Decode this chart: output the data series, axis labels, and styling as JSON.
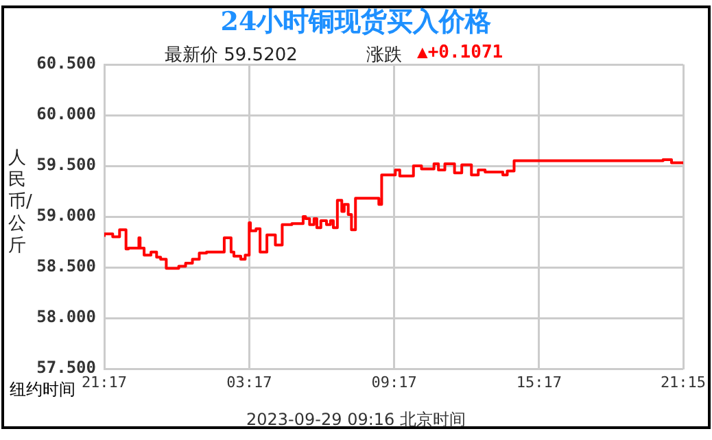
{
  "chart_data": {
    "type": "step",
    "title": "24小时铜现货买入价格",
    "subtitle": "最新价 59.5202",
    "xlabel": "纽约时间",
    "ylabel": "人民币/公斤",
    "annotations": [
      "涨跌",
      "▲+0.1071",
      "2023-09-29 09:16 北京时间"
    ],
    "x": [
      "2023-09-27T21:17",
      "2023-09-27T21:38",
      "2023-09-27T21:55",
      "2023-09-27T22:11",
      "2023-09-27T22:17",
      "2023-09-27T22:43",
      "2023-09-27T22:46",
      "2023-09-27T22:56",
      "2023-09-27T23:13",
      "2023-09-27T23:27",
      "2023-09-27T23:37",
      "2023-09-27T23:51",
      "2023-09-28T00:22",
      "2023-09-28T00:39",
      "2023-09-28T00:56",
      "2023-09-28T01:13",
      "2023-09-28T01:31",
      "2023-09-28T02:15",
      "2023-09-28T02:32",
      "2023-09-28T02:39",
      "2023-09-28T02:56",
      "2023-09-28T03:07",
      "2023-09-28T03:17",
      "2023-09-28T03:20",
      "2023-09-28T03:34",
      "2023-09-28T03:44",
      "2023-09-28T04:01",
      "2023-09-28T04:22",
      "2023-09-28T04:39",
      "2023-09-28T05:03",
      "2023-09-28T05:31",
      "2023-09-28T05:37",
      "2023-09-28T05:47",
      "2023-09-28T05:58",
      "2023-09-28T06:05",
      "2023-09-28T06:15",
      "2023-09-28T06:29",
      "2023-09-28T06:39",
      "2023-09-28T06:46",
      "2023-09-28T06:56",
      "2023-09-28T07:07",
      "2023-09-28T07:13",
      "2023-09-28T07:23",
      "2023-09-28T07:31",
      "2023-09-28T07:41",
      "2023-09-28T08:05",
      "2023-09-28T08:39",
      "2023-09-28T08:46",
      "2023-09-28T09:20",
      "2023-09-28T09:31",
      "2023-09-28T10:05",
      "2023-09-28T10:25",
      "2023-09-28T10:56",
      "2023-09-28T11:07",
      "2023-09-28T11:23",
      "2023-09-28T11:47",
      "2023-09-28T12:05",
      "2023-09-28T12:29",
      "2023-09-28T12:46",
      "2023-09-28T13:03",
      "2023-09-28T13:47",
      "2023-09-28T13:58",
      "2023-09-28T14:15",
      "2023-09-28T20:25",
      "2023-09-28T20:46",
      "2023-09-28T21:07",
      "2023-09-28T21:15"
    ],
    "series": [
      {
        "color": "#ff0000",
        "values": [
          58.8,
          58.83,
          58.8,
          58.87,
          58.68,
          58.69,
          58.79,
          58.69,
          58.62,
          58.65,
          58.6,
          58.58,
          58.49,
          58.51,
          58.54,
          58.58,
          58.64,
          58.65,
          58.79,
          58.65,
          58.61,
          58.58,
          58.62,
          58.94,
          58.86,
          58.88,
          58.65,
          58.82,
          58.72,
          58.92,
          58.93,
          59.0,
          58.98,
          58.92,
          58.98,
          58.89,
          58.96,
          58.92,
          58.96,
          58.89,
          59.16,
          59.05,
          59.12,
          59.02,
          58.87,
          59.18,
          59.18,
          59.12,
          59.41,
          59.46,
          59.4,
          59.5,
          59.47,
          59.52,
          59.46,
          59.52,
          59.43,
          59.51,
          59.41,
          59.46,
          59.44,
          59.41,
          59.45,
          59.55,
          59.56,
          59.53,
          59.53
        ]
      }
    ],
    "xlim": [
      "2023-09-27T21:17",
      "2023-09-28T21:15"
    ],
    "xticks": [
      {
        "value": "2023-09-27T21:17",
        "label": "21:17"
      },
      {
        "value": "2023-09-28T03:17",
        "label": "03:17"
      },
      {
        "value": "2023-09-28T09:17",
        "label": "09:17"
      },
      {
        "value": "2023-09-28T15:17",
        "label": "15:17"
      },
      {
        "value": "2023-09-28T21:15",
        "label": "21:15"
      }
    ],
    "ylim": [
      57.5,
      60.5
    ],
    "yticks": [
      {
        "value": 57.5,
        "label": "57.500"
      },
      {
        "value": 58,
        "label": "58.000"
      },
      {
        "value": 58.5,
        "label": "58.500"
      },
      {
        "value": 59,
        "label": "59.000"
      },
      {
        "value": 59.5,
        "label": "59.500"
      },
      {
        "value": 60,
        "label": "60.000"
      },
      {
        "value": 60.5,
        "label": "60.500"
      }
    ],
    "grid": true
  }
}
